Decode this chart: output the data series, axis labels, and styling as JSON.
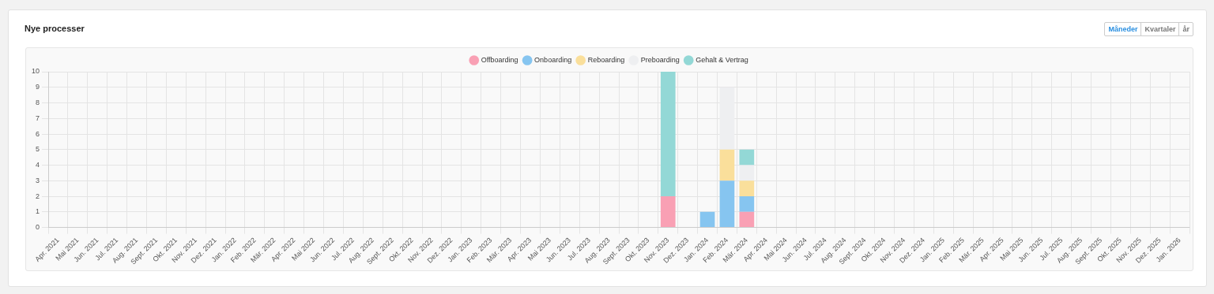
{
  "chart_data": {
    "type": "bar",
    "title": "Nye processer",
    "stacked": true,
    "legend": "top",
    "grid": true,
    "categories": [
      "Apr. 2021",
      "Mai 2021",
      "Jun. 2021",
      "Jul. 2021",
      "Aug. 2021",
      "Sept. 2021",
      "Okt. 2021",
      "Nov. 2021",
      "Dez. 2021",
      "Jan. 2022",
      "Feb. 2022",
      "Mär. 2022",
      "Apr. 2022",
      "Mai 2022",
      "Jun. 2022",
      "Jul. 2022",
      "Aug. 2022",
      "Sept. 2022",
      "Okt. 2022",
      "Nov. 2022",
      "Dez. 2022",
      "Jan. 2023",
      "Feb. 2023",
      "Mär. 2023",
      "Apr. 2023",
      "Mai 2023",
      "Jun. 2023",
      "Jul. 2023",
      "Aug. 2023",
      "Sept. 2023",
      "Okt. 2023",
      "Nov. 2023",
      "Dez. 2023",
      "Jan. 2024",
      "Feb. 2024",
      "Mär. 2024",
      "Apr. 2024",
      "Mai 2024",
      "Jun. 2024",
      "Jul. 2024",
      "Aug. 2024",
      "Sept. 2024",
      "Okt. 2024",
      "Nov. 2024",
      "Dez. 2024",
      "Jan. 2025",
      "Feb. 2025",
      "Mär. 2025",
      "Apr. 2025",
      "Mai 2025",
      "Jun. 2025",
      "Jul. 2025",
      "Aug. 2025",
      "Sept. 2025",
      "Okt. 2025",
      "Nov. 2025",
      "Dez. 2025",
      "Jan. 2026"
    ],
    "series": [
      {
        "name": "Offboarding",
        "color": "#f9a0b4",
        "values": [
          0,
          0,
          0,
          0,
          0,
          0,
          0,
          0,
          0,
          0,
          0,
          0,
          0,
          0,
          0,
          0,
          0,
          0,
          0,
          0,
          0,
          0,
          0,
          0,
          0,
          0,
          0,
          0,
          0,
          0,
          0,
          2,
          0,
          0,
          0,
          1,
          0,
          0,
          0,
          0,
          0,
          0,
          0,
          0,
          0,
          0,
          0,
          0,
          0,
          0,
          0,
          0,
          0,
          0,
          0,
          0,
          0,
          0
        ]
      },
      {
        "name": "Onboarding",
        "color": "#86c5f0",
        "values": [
          0,
          0,
          0,
          0,
          0,
          0,
          0,
          0,
          0,
          0,
          0,
          0,
          0,
          0,
          0,
          0,
          0,
          0,
          0,
          0,
          0,
          0,
          0,
          0,
          0,
          0,
          0,
          0,
          0,
          0,
          0,
          0,
          0,
          1,
          3,
          1,
          0,
          0,
          0,
          0,
          0,
          0,
          0,
          0,
          0,
          0,
          0,
          0,
          0,
          0,
          0,
          0,
          0,
          0,
          0,
          0,
          0,
          0
        ]
      },
      {
        "name": "Reboarding",
        "color": "#fadf9b",
        "values": [
          0,
          0,
          0,
          0,
          0,
          0,
          0,
          0,
          0,
          0,
          0,
          0,
          0,
          0,
          0,
          0,
          0,
          0,
          0,
          0,
          0,
          0,
          0,
          0,
          0,
          0,
          0,
          0,
          0,
          0,
          0,
          0,
          0,
          0,
          2,
          1,
          0,
          0,
          0,
          0,
          0,
          0,
          0,
          0,
          0,
          0,
          0,
          0,
          0,
          0,
          0,
          0,
          0,
          0,
          0,
          0,
          0,
          0
        ]
      },
      {
        "name": "Preboarding",
        "color": "#eeeff1",
        "values": [
          0,
          0,
          0,
          0,
          0,
          0,
          0,
          0,
          0,
          0,
          0,
          0,
          0,
          0,
          0,
          0,
          0,
          0,
          0,
          0,
          0,
          0,
          0,
          0,
          0,
          0,
          0,
          0,
          0,
          0,
          0,
          0,
          0,
          0,
          4,
          1,
          0,
          0,
          0,
          0,
          0,
          0,
          0,
          0,
          0,
          0,
          0,
          0,
          0,
          0,
          0,
          0,
          0,
          0,
          0,
          0,
          0,
          0
        ]
      },
      {
        "name": "Gehalt & Vertrag",
        "color": "#93d8d6",
        "values": [
          0,
          0,
          0,
          0,
          0,
          0,
          0,
          0,
          0,
          0,
          0,
          0,
          0,
          0,
          0,
          0,
          0,
          0,
          0,
          0,
          0,
          0,
          0,
          0,
          0,
          0,
          0,
          0,
          0,
          0,
          0,
          8,
          0,
          0,
          0,
          1,
          0,
          0,
          0,
          0,
          0,
          0,
          0,
          0,
          0,
          0,
          0,
          0,
          0,
          0,
          0,
          0,
          0,
          0,
          0,
          0,
          0,
          0
        ]
      }
    ],
    "ylim": [
      0,
      10
    ],
    "yticks": [
      0,
      1,
      2,
      3,
      4,
      5,
      6,
      7,
      8,
      9,
      10
    ],
    "annotations": [
      "Måneder",
      "Kvartaler",
      "år"
    ]
  }
}
